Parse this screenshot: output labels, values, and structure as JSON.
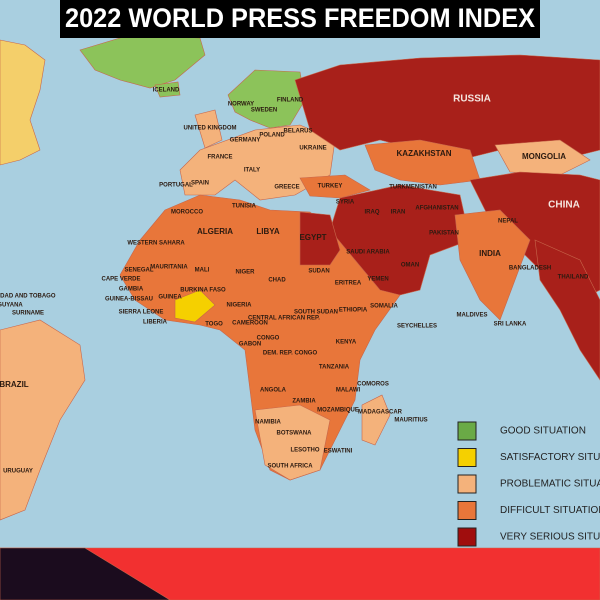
{
  "title": "2022 WORLD PRESS FREEDOM INDEX",
  "country_labels": [
    "ICELAND",
    "NORWAY",
    "SWEDEN",
    "FINLAND",
    "RUSSIA",
    "UNITED KINGDOM",
    "POLAND",
    "BELARUS",
    "UKRAINE",
    "GERMANY",
    "FRANCE",
    "SPAIN",
    "PORTUGAL",
    "ITALY",
    "GREECE",
    "TURKEY",
    "KAZAKHSTAN",
    "MONGOLIA",
    "TURKMENISTAN",
    "AFGHANISTAN",
    "CHINA",
    "IRAN",
    "IRAQ",
    "SYRIA",
    "PAKISTAN",
    "INDIA",
    "SAUDI ARABIA",
    "EGYPT",
    "LIBYA",
    "ALGERIA",
    "MOROCCO",
    "TUNISIA",
    "WESTERN SAHARA",
    "MAURITANIA",
    "MALI",
    "NIGER",
    "CHAD",
    "SUDAN",
    "YEMEN",
    "OMAN",
    "SENEGAL",
    "CAPE VERDE",
    "GAMBIA",
    "GUINEA-BISSAU",
    "GUINEA",
    "SIERRA LEONE",
    "LIBERIA",
    "BURKINA FASO",
    "NIGERIA",
    "ERITREA",
    "SOUTH SUDAN",
    "ETHIOPIA",
    "SOMALIA",
    "CAMEROON",
    "CENTRAL AFRICAN REP.",
    "TOGO",
    "GABON",
    "CONGO",
    "DEM. REP. CONGO",
    "KENYA",
    "TANZANIA",
    "ANGOLA",
    "ZAMBIA",
    "MALAWI",
    "MOZAMBIQUE",
    "NAMIBIA",
    "BOTSWANA",
    "MADAGASCAR",
    "SOUTH AFRICA",
    "ESWATINI",
    "LESOTHO",
    "COMOROS",
    "MAURITIUS",
    "SEYCHELLES",
    "MALDIVES",
    "SRI LANKA",
    "BANGLADESH",
    "THAILAND",
    "NEPAL",
    "BRAZIL",
    "URUGUAY",
    "GUYANA",
    "SURINAME",
    "TRINIDAD AND TOBAGO"
  ],
  "legend": [
    {
      "label": "GOOD SITUATION",
      "color": "#6aaa46"
    },
    {
      "label": "SATISFACTORY SITUATION",
      "color": "#f5d000"
    },
    {
      "label": "PROBLEMATIC SITUATION",
      "color": "#f4b27b"
    },
    {
      "label": "DIFFICULT SITUATION",
      "color": "#e8763a"
    },
    {
      "label": "VERY SERIOUS SITUATION",
      "color": "#a00d0d"
    }
  ]
}
